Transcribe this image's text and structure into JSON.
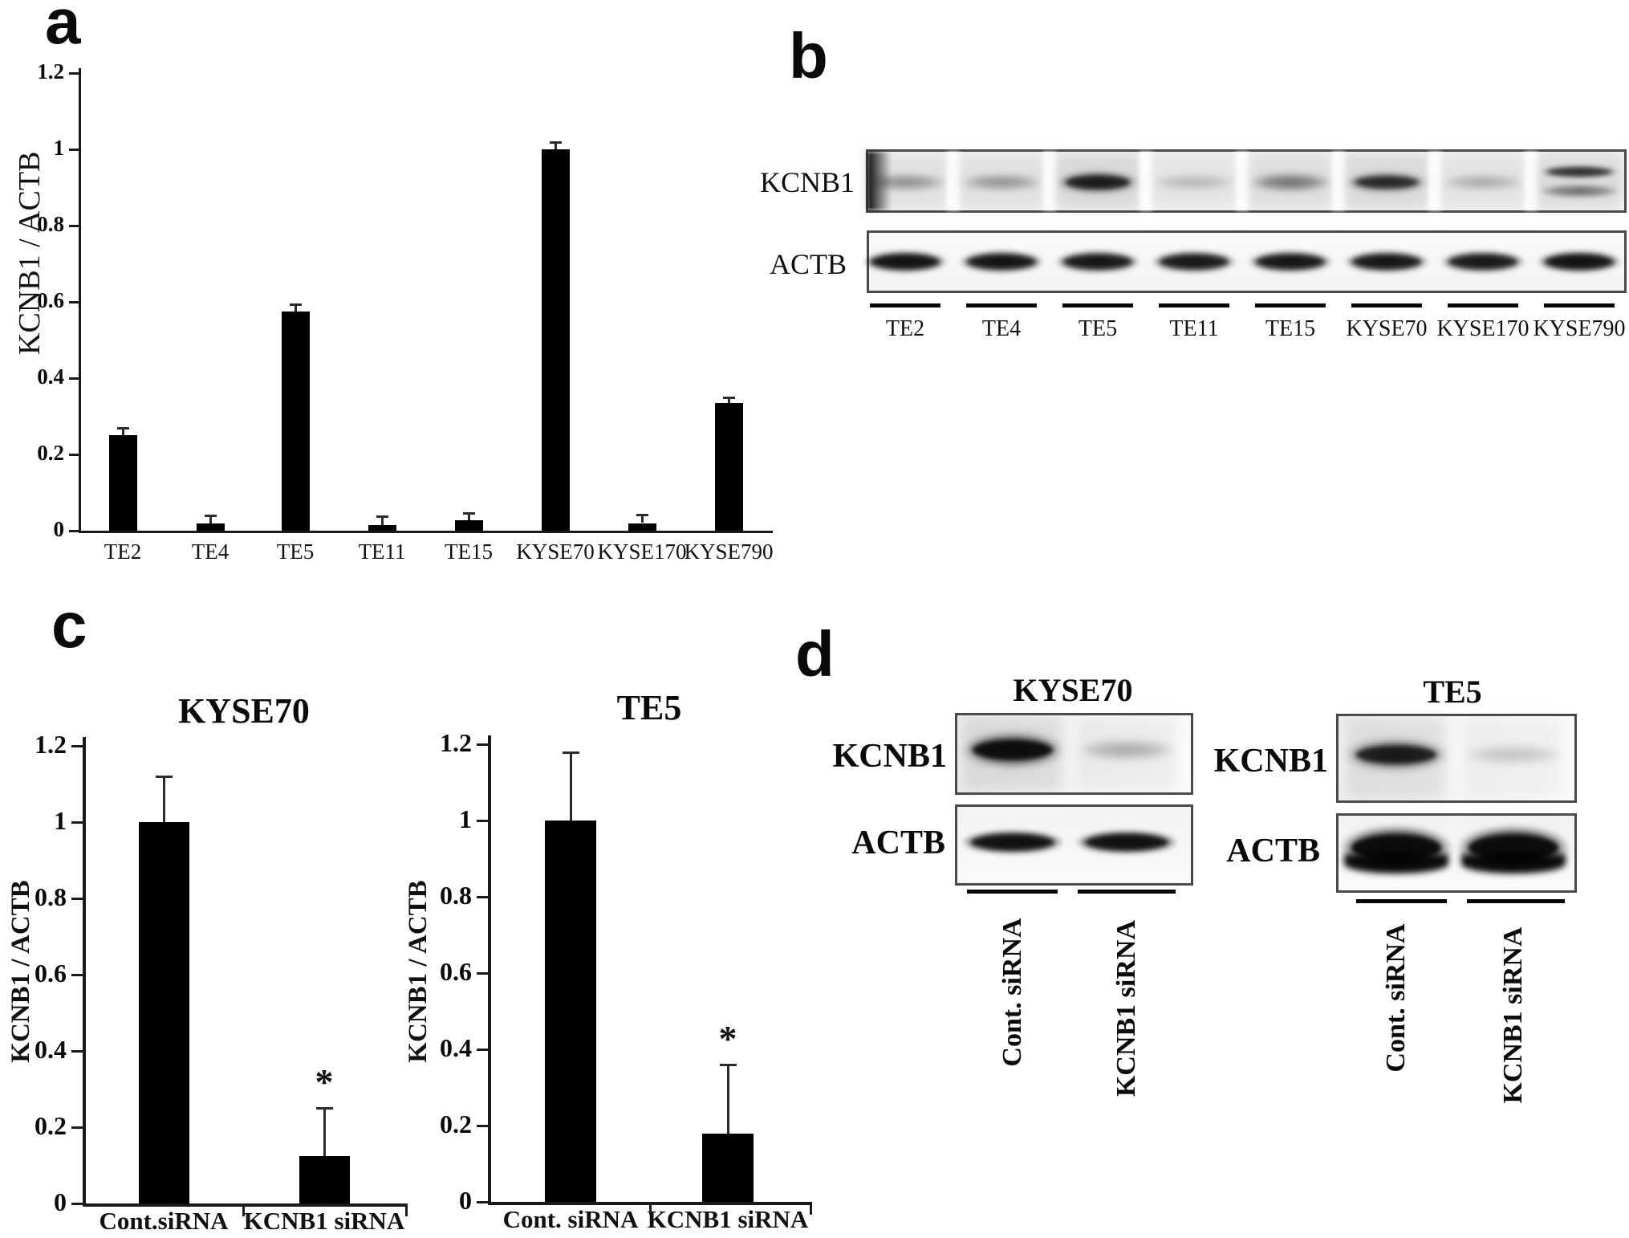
{
  "panel_letters": {
    "a": "a",
    "b": "b",
    "c": "c",
    "d": "d"
  },
  "chart_data": [
    {
      "id": "panel-a",
      "type": "bar",
      "title": "",
      "xlabel": "",
      "ylabel": "KCNB1 / ACTB",
      "categories": [
        "TE2",
        "TE4",
        "TE5",
        "TE11",
        "TE15",
        "KYSE70",
        "KYSE170",
        "KYSE790"
      ],
      "values": [
        0.25,
        0.02,
        0.575,
        0.015,
        0.028,
        1.0,
        0.02,
        0.335
      ],
      "errors": [
        0.02,
        0.02,
        0.018,
        0.022,
        0.018,
        0.018,
        0.022,
        0.015
      ],
      "significance": [
        "",
        "",
        "",
        "",
        "",
        "",
        "",
        ""
      ],
      "ylim": [
        0,
        1.2
      ],
      "yticks": [
        0,
        0.2,
        0.4,
        0.6,
        0.8,
        1,
        1.2
      ],
      "ytick_labels": [
        "0",
        "0.2",
        "0.4",
        "0.6",
        "0.8",
        "1",
        "1.2"
      ],
      "grid": false,
      "legend": false,
      "bar_color": "#000000"
    },
    {
      "id": "panel-c-kyse70",
      "type": "bar",
      "title": "KYSE70",
      "xlabel": "",
      "ylabel": "KCNB1 / ACTB",
      "categories": [
        "Cont.siRNA",
        "KCNB1 siRNA"
      ],
      "values": [
        1.0,
        0.125
      ],
      "errors": [
        0.12,
        0.125
      ],
      "significance": [
        "",
        "*"
      ],
      "ylim": [
        0,
        1.2
      ],
      "yticks": [
        0,
        0.2,
        0.4,
        0.6,
        0.8,
        1,
        1.2
      ],
      "ytick_labels": [
        "0",
        "0.2",
        "0.4",
        "0.6",
        "0.8",
        "1",
        "1.2"
      ],
      "grid": false,
      "legend": false,
      "bar_color": "#000000"
    },
    {
      "id": "panel-c-te5",
      "type": "bar",
      "title": "TE5",
      "xlabel": "",
      "ylabel": "KCNB1 / ACTB",
      "categories": [
        "Cont. siRNA",
        "KCNB1 siRNA"
      ],
      "values": [
        1.0,
        0.18
      ],
      "errors": [
        0.18,
        0.18
      ],
      "significance": [
        "",
        "*"
      ],
      "ylim": [
        0,
        1.2
      ],
      "yticks": [
        0,
        0.2,
        0.4,
        0.6,
        0.8,
        1,
        1.2
      ],
      "ytick_labels": [
        "0",
        "0.2",
        "0.4",
        "0.6",
        "0.8",
        "1",
        "1.2"
      ],
      "grid": false,
      "legend": false,
      "bar_color": "#000000"
    }
  ],
  "panel_b": {
    "kcnb1_label": "KCNB1",
    "actb_label": "ACTB",
    "lanes": [
      {
        "label": "TE2",
        "kcnb1": 0.38,
        "actb": 0.85,
        "doublet": false,
        "edge_blob": true
      },
      {
        "label": "TE4",
        "kcnb1": 0.36,
        "actb": 0.82,
        "doublet": false
      },
      {
        "label": "TE5",
        "kcnb1": 0.75,
        "actb": 0.8,
        "doublet": false
      },
      {
        "label": "TE11",
        "kcnb1": 0.2,
        "actb": 0.78,
        "doublet": false
      },
      {
        "label": "TE15",
        "kcnb1": 0.52,
        "actb": 0.8,
        "doublet": false
      },
      {
        "label": "KYSE70",
        "kcnb1": 0.66,
        "actb": 0.8,
        "doublet": false
      },
      {
        "label": "KYSE170",
        "kcnb1": 0.26,
        "actb": 0.78,
        "doublet": false
      },
      {
        "label": "KYSE790",
        "kcnb1": 0.6,
        "actb": 0.85,
        "doublet": true
      }
    ]
  },
  "panel_d": {
    "blocks": [
      {
        "title": "KYSE70",
        "kcnb1_label": "KCNB1",
        "actb_label": "ACTB",
        "lanes": [
          {
            "label": "Cont. siRNA",
            "kcnb1": 0.93,
            "actb": 0.88
          },
          {
            "label": "KCNB1 siRNA",
            "kcnb1": 0.3,
            "actb": 0.88
          }
        ]
      },
      {
        "title": "TE5",
        "kcnb1_label": "KCNB1",
        "actb_label": "ACTB",
        "lanes": [
          {
            "label": "Cont. siRNA",
            "kcnb1": 0.78,
            "actb": 0.98
          },
          {
            "label": "KCNB1 siRNA",
            "kcnb1": 0.2,
            "actb": 0.98
          }
        ]
      }
    ]
  }
}
